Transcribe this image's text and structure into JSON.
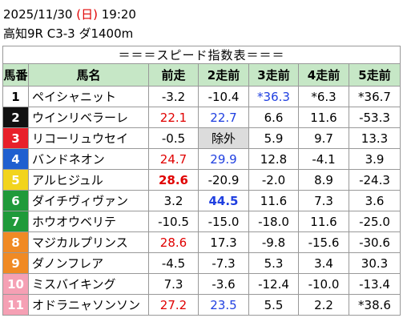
{
  "header": {
    "date": "2025/11/30",
    "weekday": "(日)",
    "time": "19:20",
    "race": "高知9R C3-3 ダ1400m"
  },
  "table": {
    "title": "＝＝＝スピード指数表＝＝＝",
    "columns": [
      "馬番",
      "馬名",
      "前走",
      "2走前",
      "3走前",
      "4走前",
      "5走前"
    ],
    "rows": [
      {
        "number": "1",
        "name": "ペイシャニット",
        "speeds": [
          "-3.2",
          "-10.4",
          "*36.3",
          "*6.3",
          "*36.7"
        ]
      },
      {
        "number": "2",
        "name": "ウインリベラーレ",
        "speeds": [
          "22.1",
          "22.7",
          "6.6",
          "11.6",
          "-53.3"
        ]
      },
      {
        "number": "3",
        "name": "リコーリュウセイ",
        "speeds": [
          "-0.5",
          "除外",
          "5.9",
          "9.7",
          "13.3"
        ]
      },
      {
        "number": "4",
        "name": "バンドネオン",
        "speeds": [
          "24.7",
          "29.9",
          "12.8",
          "-4.1",
          "3.9"
        ]
      },
      {
        "number": "5",
        "name": "アルヒジュル",
        "speeds": [
          "28.6",
          "-20.9",
          "-2.0",
          "8.9",
          "-24.3"
        ]
      },
      {
        "number": "6",
        "name": "ダイチヴィヴァン",
        "speeds": [
          "3.2",
          "44.5",
          "11.6",
          "7.3",
          "3.6"
        ]
      },
      {
        "number": "7",
        "name": "ホウオウベリテ",
        "speeds": [
          "-10.5",
          "-15.0",
          "-18.0",
          "11.6",
          "-25.0"
        ]
      },
      {
        "number": "8",
        "name": "マジカルプリンス",
        "speeds": [
          "28.6",
          "17.3",
          "-9.8",
          "-15.6",
          "-30.6"
        ]
      },
      {
        "number": "9",
        "name": "ダノンフレア",
        "speeds": [
          "-4.5",
          "-7.3",
          "5.3",
          "3.4",
          "30.3"
        ]
      },
      {
        "number": "10",
        "name": "ミスバイキング",
        "speeds": [
          "7.3",
          "-3.6",
          "-12.4",
          "-10.0",
          "-13.4"
        ]
      },
      {
        "number": "11",
        "name": "オドラニャソンソン",
        "speeds": [
          "27.2",
          "23.5",
          "5.5",
          "2.2",
          "*38.6"
        ]
      }
    ]
  }
}
